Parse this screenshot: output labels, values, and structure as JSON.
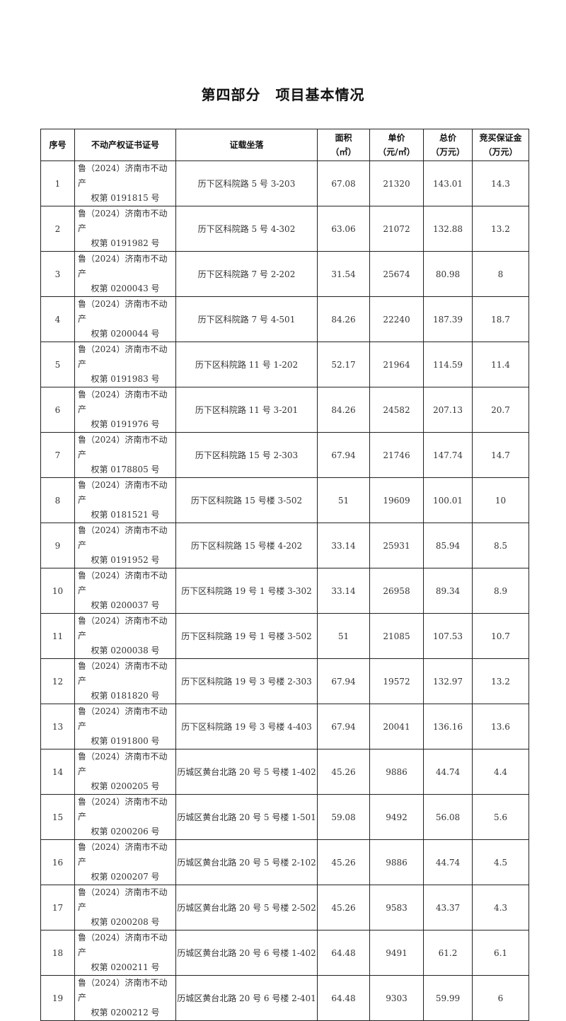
{
  "title": "第四部分　项目基本情况",
  "table": {
    "headers": [
      "序号",
      "不动产权证书证号",
      "证载坐落",
      "面积\n（㎡）",
      "单价\n（元/㎡）",
      "总价\n（万元）",
      "竞买保证金\n（万元）"
    ],
    "rows": [
      {
        "no": "1",
        "cert_line1": "鲁（2024）济南市不动产",
        "cert_line2": "权第 0191815 号",
        "address": "历下区科院路 5 号 3-203",
        "area": "67.08",
        "unit_price": "21320",
        "total": "143.01",
        "deposit": "14.3"
      },
      {
        "no": "2",
        "cert_line1": "鲁（2024）济南市不动产",
        "cert_line2": "权第 0191982 号",
        "address": "历下区科院路 5 号 4-302",
        "area": "63.06",
        "unit_price": "21072",
        "total": "132.88",
        "deposit": "13.2"
      },
      {
        "no": "3",
        "cert_line1": "鲁（2024）济南市不动产",
        "cert_line2": "权第 0200043 号",
        "address": "历下区科院路 7 号 2-202",
        "area": "31.54",
        "unit_price": "25674",
        "total": "80.98",
        "deposit": "8"
      },
      {
        "no": "4",
        "cert_line1": "鲁（2024）济南市不动产",
        "cert_line2": "权第 0200044 号",
        "address": "历下区科院路 7 号 4-501",
        "area": "84.26",
        "unit_price": "22240",
        "total": "187.39",
        "deposit": "18.7"
      },
      {
        "no": "5",
        "cert_line1": "鲁（2024）济南市不动产",
        "cert_line2": "权第 0191983 号",
        "address": "历下区科院路 11 号 1-202",
        "area": "52.17",
        "unit_price": "21964",
        "total": "114.59",
        "deposit": "11.4"
      },
      {
        "no": "6",
        "cert_line1": "鲁（2024）济南市不动产",
        "cert_line2": "权第 0191976 号",
        "address": "历下区科院路 11 号 3-201",
        "area": "84.26",
        "unit_price": "24582",
        "total": "207.13",
        "deposit": "20.7"
      },
      {
        "no": "7",
        "cert_line1": "鲁（2024）济南市不动产",
        "cert_line2": "权第 0178805 号",
        "address": "历下区科院路 15 号 2-303",
        "area": "67.94",
        "unit_price": "21746",
        "total": "147.74",
        "deposit": "14.7"
      },
      {
        "no": "8",
        "cert_line1": "鲁（2024）济南市不动产",
        "cert_line2": "权第 0181521 号",
        "address": "历下区科院路 15 号楼 3-502",
        "area": "51",
        "unit_price": "19609",
        "total": "100.01",
        "deposit": "10"
      },
      {
        "no": "9",
        "cert_line1": "鲁（2024）济南市不动产",
        "cert_line2": "权第 0191952 号",
        "address": "历下区科院路 15 号楼 4-202",
        "area": "33.14",
        "unit_price": "25931",
        "total": "85.94",
        "deposit": "8.5"
      },
      {
        "no": "10",
        "cert_line1": "鲁（2024）济南市不动产",
        "cert_line2": "权第 0200037 号",
        "address": "历下区科院路 19 号 1 号楼 3-302",
        "area": "33.14",
        "unit_price": "26958",
        "total": "89.34",
        "deposit": "8.9"
      },
      {
        "no": "11",
        "cert_line1": "鲁（2024）济南市不动产",
        "cert_line2": "权第 0200038 号",
        "address": "历下区科院路 19 号 1 号楼 3-502",
        "area": "51",
        "unit_price": "21085",
        "total": "107.53",
        "deposit": "10.7"
      },
      {
        "no": "12",
        "cert_line1": "鲁（2024）济南市不动产",
        "cert_line2": "权第 0181820 号",
        "address": "历下区科院路 19 号 3 号楼 2-303",
        "area": "67.94",
        "unit_price": "19572",
        "total": "132.97",
        "deposit": "13.2"
      },
      {
        "no": "13",
        "cert_line1": "鲁（2024）济南市不动产",
        "cert_line2": "权第 0191800 号",
        "address": "历下区科院路 19 号 3 号楼 4-403",
        "area": "67.94",
        "unit_price": "20041",
        "total": "136.16",
        "deposit": "13.6"
      },
      {
        "no": "14",
        "cert_line1": "鲁（2024）济南市不动产",
        "cert_line2": "权第 0200205 号",
        "address": "历城区黄台北路 20 号 5 号楼 1-402",
        "area": "45.26",
        "unit_price": "9886",
        "total": "44.74",
        "deposit": "4.4"
      },
      {
        "no": "15",
        "cert_line1": "鲁（2024）济南市不动产",
        "cert_line2": "权第 0200206 号",
        "address": "历城区黄台北路 20 号 5 号楼 1-501",
        "area": "59.08",
        "unit_price": "9492",
        "total": "56.08",
        "deposit": "5.6"
      },
      {
        "no": "16",
        "cert_line1": "鲁（2024）济南市不动产",
        "cert_line2": "权第 0200207 号",
        "address": "历城区黄台北路 20 号 5 号楼 2-102",
        "area": "45.26",
        "unit_price": "9886",
        "total": "44.74",
        "deposit": "4.5"
      },
      {
        "no": "17",
        "cert_line1": "鲁（2024）济南市不动产",
        "cert_line2": "权第 0200208 号",
        "address": "历城区黄台北路 20 号 5 号楼 2-502",
        "area": "45.26",
        "unit_price": "9583",
        "total": "43.37",
        "deposit": "4.3"
      },
      {
        "no": "18",
        "cert_line1": "鲁（2024）济南市不动产",
        "cert_line2": "权第 0200211 号",
        "address": "历城区黄台北路 20 号 6 号楼 1-402",
        "area": "64.48",
        "unit_price": "9491",
        "total": "61.2",
        "deposit": "6.1"
      },
      {
        "no": "19",
        "cert_line1": "鲁（2024）济南市不动产",
        "cert_line2": "权第 0200212 号",
        "address": "历城区黄台北路 20 号 6 号楼 2-401",
        "area": "64.48",
        "unit_price": "9303",
        "total": "59.99",
        "deposit": "6"
      }
    ]
  }
}
